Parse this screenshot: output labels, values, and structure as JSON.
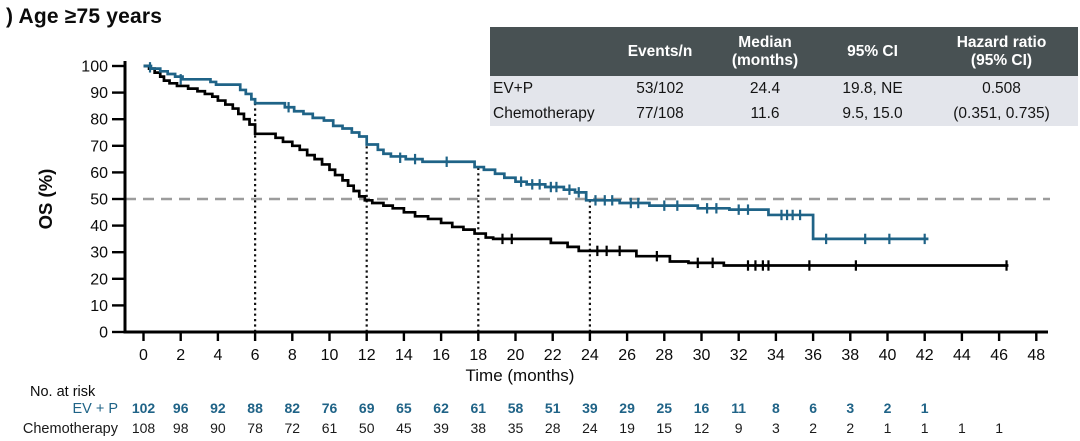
{
  "title": ") Age ≥75 years",
  "summary_table": {
    "column_headers": [
      {
        "lines": [
          ""
        ]
      },
      {
        "lines": [
          "Events/n"
        ]
      },
      {
        "lines": [
          "Median",
          "(months)"
        ]
      },
      {
        "lines": [
          "95% CI"
        ]
      },
      {
        "lines": [
          "Hazard ratio",
          "(95% CI)"
        ]
      }
    ],
    "rows": [
      {
        "name": "EV+P",
        "events_n": "53/102",
        "median": "24.4",
        "ci": "19.8, NE",
        "hr": "0.508"
      },
      {
        "name": "Chemotherapy",
        "events_n": "77/108",
        "median": "11.6",
        "ci": "9.5, 15.0",
        "hr": "(0.351, 0.735)"
      }
    ],
    "header_bg": "#485153",
    "row_bg": "#e3e5eb"
  },
  "chart_data": {
    "type": "line",
    "subtype": "kaplan-meier-step",
    "title": ") Age ≥75 years",
    "xlabel": "Time (months)",
    "ylabel": "OS (%)",
    "xlim": [
      0,
      48
    ],
    "ylim": [
      0,
      100
    ],
    "xtick_step": 2,
    "ytick_step": 10,
    "grid": false,
    "reference_h_line": {
      "y": 50,
      "style": "dashed",
      "color": "#9c9c9c"
    },
    "reference_v_lines": {
      "x": [
        6,
        12,
        18,
        24
      ],
      "style": "dotted",
      "color": "#111111",
      "top": "ev_p_curve"
    },
    "series": [
      {
        "name": "Chemotherapy",
        "color": "#000000",
        "end_time": 46.5,
        "steps": [
          [
            0,
            100
          ],
          [
            0.3,
            99
          ],
          [
            0.6,
            97.5
          ],
          [
            0.9,
            96
          ],
          [
            1.1,
            94.5
          ],
          [
            1.4,
            93.5
          ],
          [
            1.8,
            92.5
          ],
          [
            2.4,
            91.5
          ],
          [
            2.9,
            90.5
          ],
          [
            3.3,
            89.5
          ],
          [
            3.7,
            88.5
          ],
          [
            4.0,
            87
          ],
          [
            4.4,
            85.5
          ],
          [
            4.8,
            84
          ],
          [
            5.1,
            82
          ],
          [
            5.4,
            80
          ],
          [
            5.7,
            78
          ],
          [
            6.0,
            74.5
          ],
          [
            7.1,
            73
          ],
          [
            7.5,
            71.5
          ],
          [
            8.0,
            70
          ],
          [
            8.4,
            68.5
          ],
          [
            8.8,
            66.5
          ],
          [
            9.2,
            65
          ],
          [
            9.6,
            63
          ],
          [
            10.0,
            61
          ],
          [
            10.3,
            59
          ],
          [
            10.7,
            57
          ],
          [
            11.0,
            55
          ],
          [
            11.3,
            53
          ],
          [
            11.6,
            51
          ],
          [
            11.9,
            49.5
          ],
          [
            12.3,
            48.5
          ],
          [
            12.9,
            47.5
          ],
          [
            13.4,
            46.5
          ],
          [
            14.0,
            45
          ],
          [
            14.6,
            43.5
          ],
          [
            15.3,
            42.5
          ],
          [
            16.0,
            41
          ],
          [
            16.6,
            39.5
          ],
          [
            17.2,
            38.5
          ],
          [
            17.8,
            37
          ],
          [
            18.4,
            35.5
          ],
          [
            18.8,
            35
          ],
          [
            21.9,
            33.5
          ],
          [
            22.8,
            32
          ],
          [
            23.4,
            30.5
          ],
          [
            26.5,
            28.5
          ],
          [
            28.3,
            26.5
          ],
          [
            29.3,
            26
          ],
          [
            31.2,
            25
          ]
        ],
        "censors": [
          [
            19.3,
            35
          ],
          [
            19.8,
            35
          ],
          [
            24.4,
            30.5
          ],
          [
            24.9,
            30.5
          ],
          [
            25.6,
            30.5
          ],
          [
            27.6,
            28.5
          ],
          [
            29.8,
            26
          ],
          [
            30.6,
            26
          ],
          [
            32.5,
            25
          ],
          [
            32.9,
            25
          ],
          [
            33.3,
            25
          ],
          [
            33.6,
            25
          ],
          [
            35.8,
            25
          ],
          [
            38.3,
            25
          ],
          [
            46.4,
            25
          ]
        ]
      },
      {
        "name": "EV+P",
        "color": "#1f6387",
        "end_time": 42.2,
        "steps": [
          [
            0,
            100
          ],
          [
            0.4,
            99
          ],
          [
            0.9,
            98
          ],
          [
            1.3,
            97
          ],
          [
            1.7,
            96
          ],
          [
            2.1,
            95
          ],
          [
            3.6,
            94
          ],
          [
            3.9,
            93
          ],
          [
            5.2,
            91
          ],
          [
            5.5,
            89.5
          ],
          [
            5.8,
            87.5
          ],
          [
            6.0,
            86
          ],
          [
            7.6,
            84.5
          ],
          [
            8.1,
            83
          ],
          [
            8.6,
            82
          ],
          [
            9.1,
            80.5
          ],
          [
            9.7,
            79.5
          ],
          [
            10.2,
            77.5
          ],
          [
            10.7,
            76.5
          ],
          [
            11.2,
            75
          ],
          [
            11.6,
            73.5
          ],
          [
            12.0,
            70.5
          ],
          [
            12.6,
            68.5
          ],
          [
            12.9,
            67
          ],
          [
            13.3,
            66
          ],
          [
            14.1,
            65
          ],
          [
            15.0,
            64
          ],
          [
            17.8,
            62
          ],
          [
            18.3,
            61
          ],
          [
            18.9,
            59.5
          ],
          [
            19.4,
            58
          ],
          [
            20.0,
            56.5
          ],
          [
            20.6,
            55.5
          ],
          [
            21.6,
            54.5
          ],
          [
            22.6,
            53.5
          ],
          [
            23.2,
            52.5
          ],
          [
            23.8,
            49.5
          ],
          [
            25.6,
            48.5
          ],
          [
            27.2,
            47.5
          ],
          [
            29.8,
            46.5
          ],
          [
            31.5,
            46
          ],
          [
            33.6,
            44
          ],
          [
            36.0,
            35
          ]
        ],
        "censors": [
          [
            0.35,
            99.5
          ],
          [
            2.0,
            95
          ],
          [
            7.8,
            84.5
          ],
          [
            13.8,
            65.5
          ],
          [
            14.6,
            65
          ],
          [
            16.3,
            64
          ],
          [
            20.3,
            56.5
          ],
          [
            20.9,
            55.5
          ],
          [
            21.3,
            55.5
          ],
          [
            21.9,
            54.5
          ],
          [
            22.2,
            54.5
          ],
          [
            22.9,
            53.5
          ],
          [
            23.4,
            52.5
          ],
          [
            24.3,
            49.5
          ],
          [
            24.8,
            49.5
          ],
          [
            25.2,
            49.5
          ],
          [
            26.2,
            48.5
          ],
          [
            26.6,
            48.5
          ],
          [
            28.0,
            47.5
          ],
          [
            28.7,
            47.5
          ],
          [
            30.3,
            46.5
          ],
          [
            30.8,
            46.5
          ],
          [
            32.0,
            46
          ],
          [
            32.5,
            46
          ],
          [
            34.3,
            44
          ],
          [
            34.6,
            44
          ],
          [
            34.9,
            44
          ],
          [
            35.3,
            44
          ],
          [
            36.7,
            35
          ],
          [
            38.8,
            35
          ],
          [
            40.1,
            35
          ],
          [
            42.0,
            35
          ]
        ]
      }
    ]
  },
  "risk_table": {
    "caption": "No. at risk",
    "times": [
      0,
      2,
      4,
      6,
      8,
      10,
      12,
      14,
      16,
      18,
      20,
      22,
      24,
      26,
      28,
      30,
      32,
      34,
      36,
      38,
      40,
      42,
      44,
      46
    ],
    "rows": [
      {
        "label": "EV + P",
        "color": "#1f6387",
        "bold": true,
        "values": [
          102,
          96,
          92,
          88,
          82,
          76,
          69,
          65,
          62,
          61,
          58,
          51,
          39,
          29,
          25,
          16,
          11,
          8,
          6,
          3,
          2,
          1,
          null,
          null
        ]
      },
      {
        "label": "Chemotherapy",
        "color": "#1a1a1a",
        "bold": false,
        "values": [
          108,
          98,
          90,
          78,
          72,
          61,
          50,
          45,
          39,
          38,
          35,
          28,
          24,
          19,
          15,
          12,
          9,
          3,
          2,
          2,
          1,
          1,
          1,
          1
        ]
      }
    ]
  }
}
